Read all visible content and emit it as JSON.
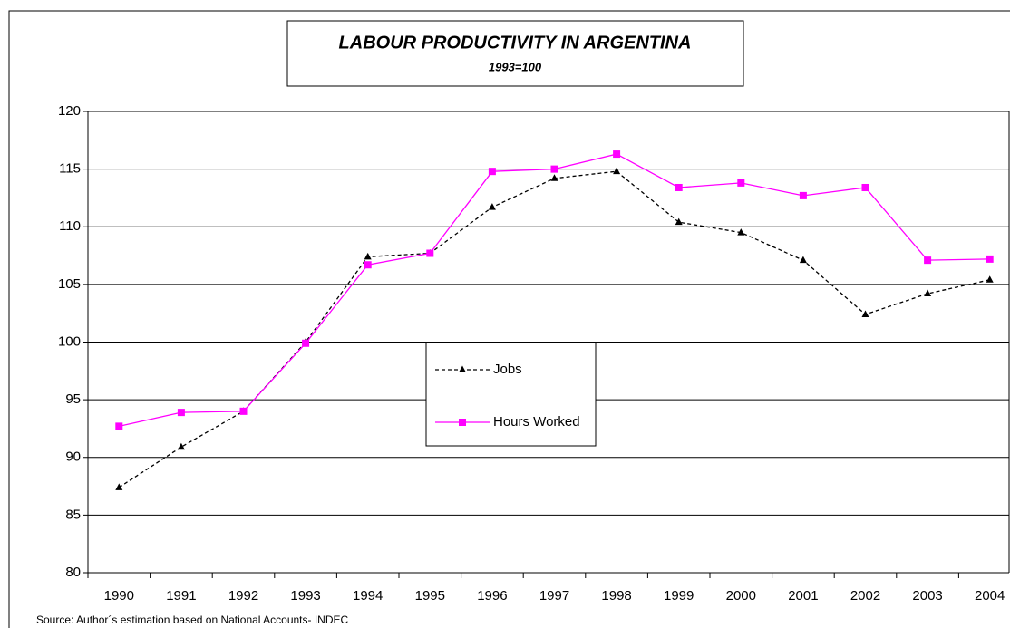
{
  "chart_data": {
    "type": "line",
    "title": "LABOUR PRODUCTIVITY IN ARGENTINA",
    "subtitle": "1993=100",
    "source": "Source: Author´s estimation based on National Accounts- INDEC",
    "categories": [
      "1990",
      "1991",
      "1992",
      "1993",
      "1994",
      "1995",
      "1996",
      "1997",
      "1998",
      "1999",
      "2000",
      "2001",
      "2002",
      "2003",
      "2004"
    ],
    "series": [
      {
        "name": "Jobs",
        "color": "#000000",
        "dash": true,
        "marker": "triangle",
        "values": [
          87.4,
          90.9,
          94.0,
          100.0,
          107.4,
          107.7,
          111.7,
          114.2,
          114.8,
          110.4,
          109.5,
          107.1,
          102.4,
          104.2,
          105.4
        ]
      },
      {
        "name": "Hours Worked",
        "color": "#ff00ff",
        "dash": false,
        "marker": "square",
        "values": [
          92.7,
          93.9,
          94.0,
          99.9,
          106.7,
          107.7,
          114.8,
          115.0,
          116.3,
          113.4,
          113.8,
          112.7,
          113.4,
          107.1,
          107.2
        ]
      }
    ],
    "ylim": [
      80,
      120
    ],
    "yticks": [
      80,
      85,
      90,
      95,
      100,
      105,
      110,
      115,
      120
    ],
    "grid": true,
    "legend": "center"
  }
}
